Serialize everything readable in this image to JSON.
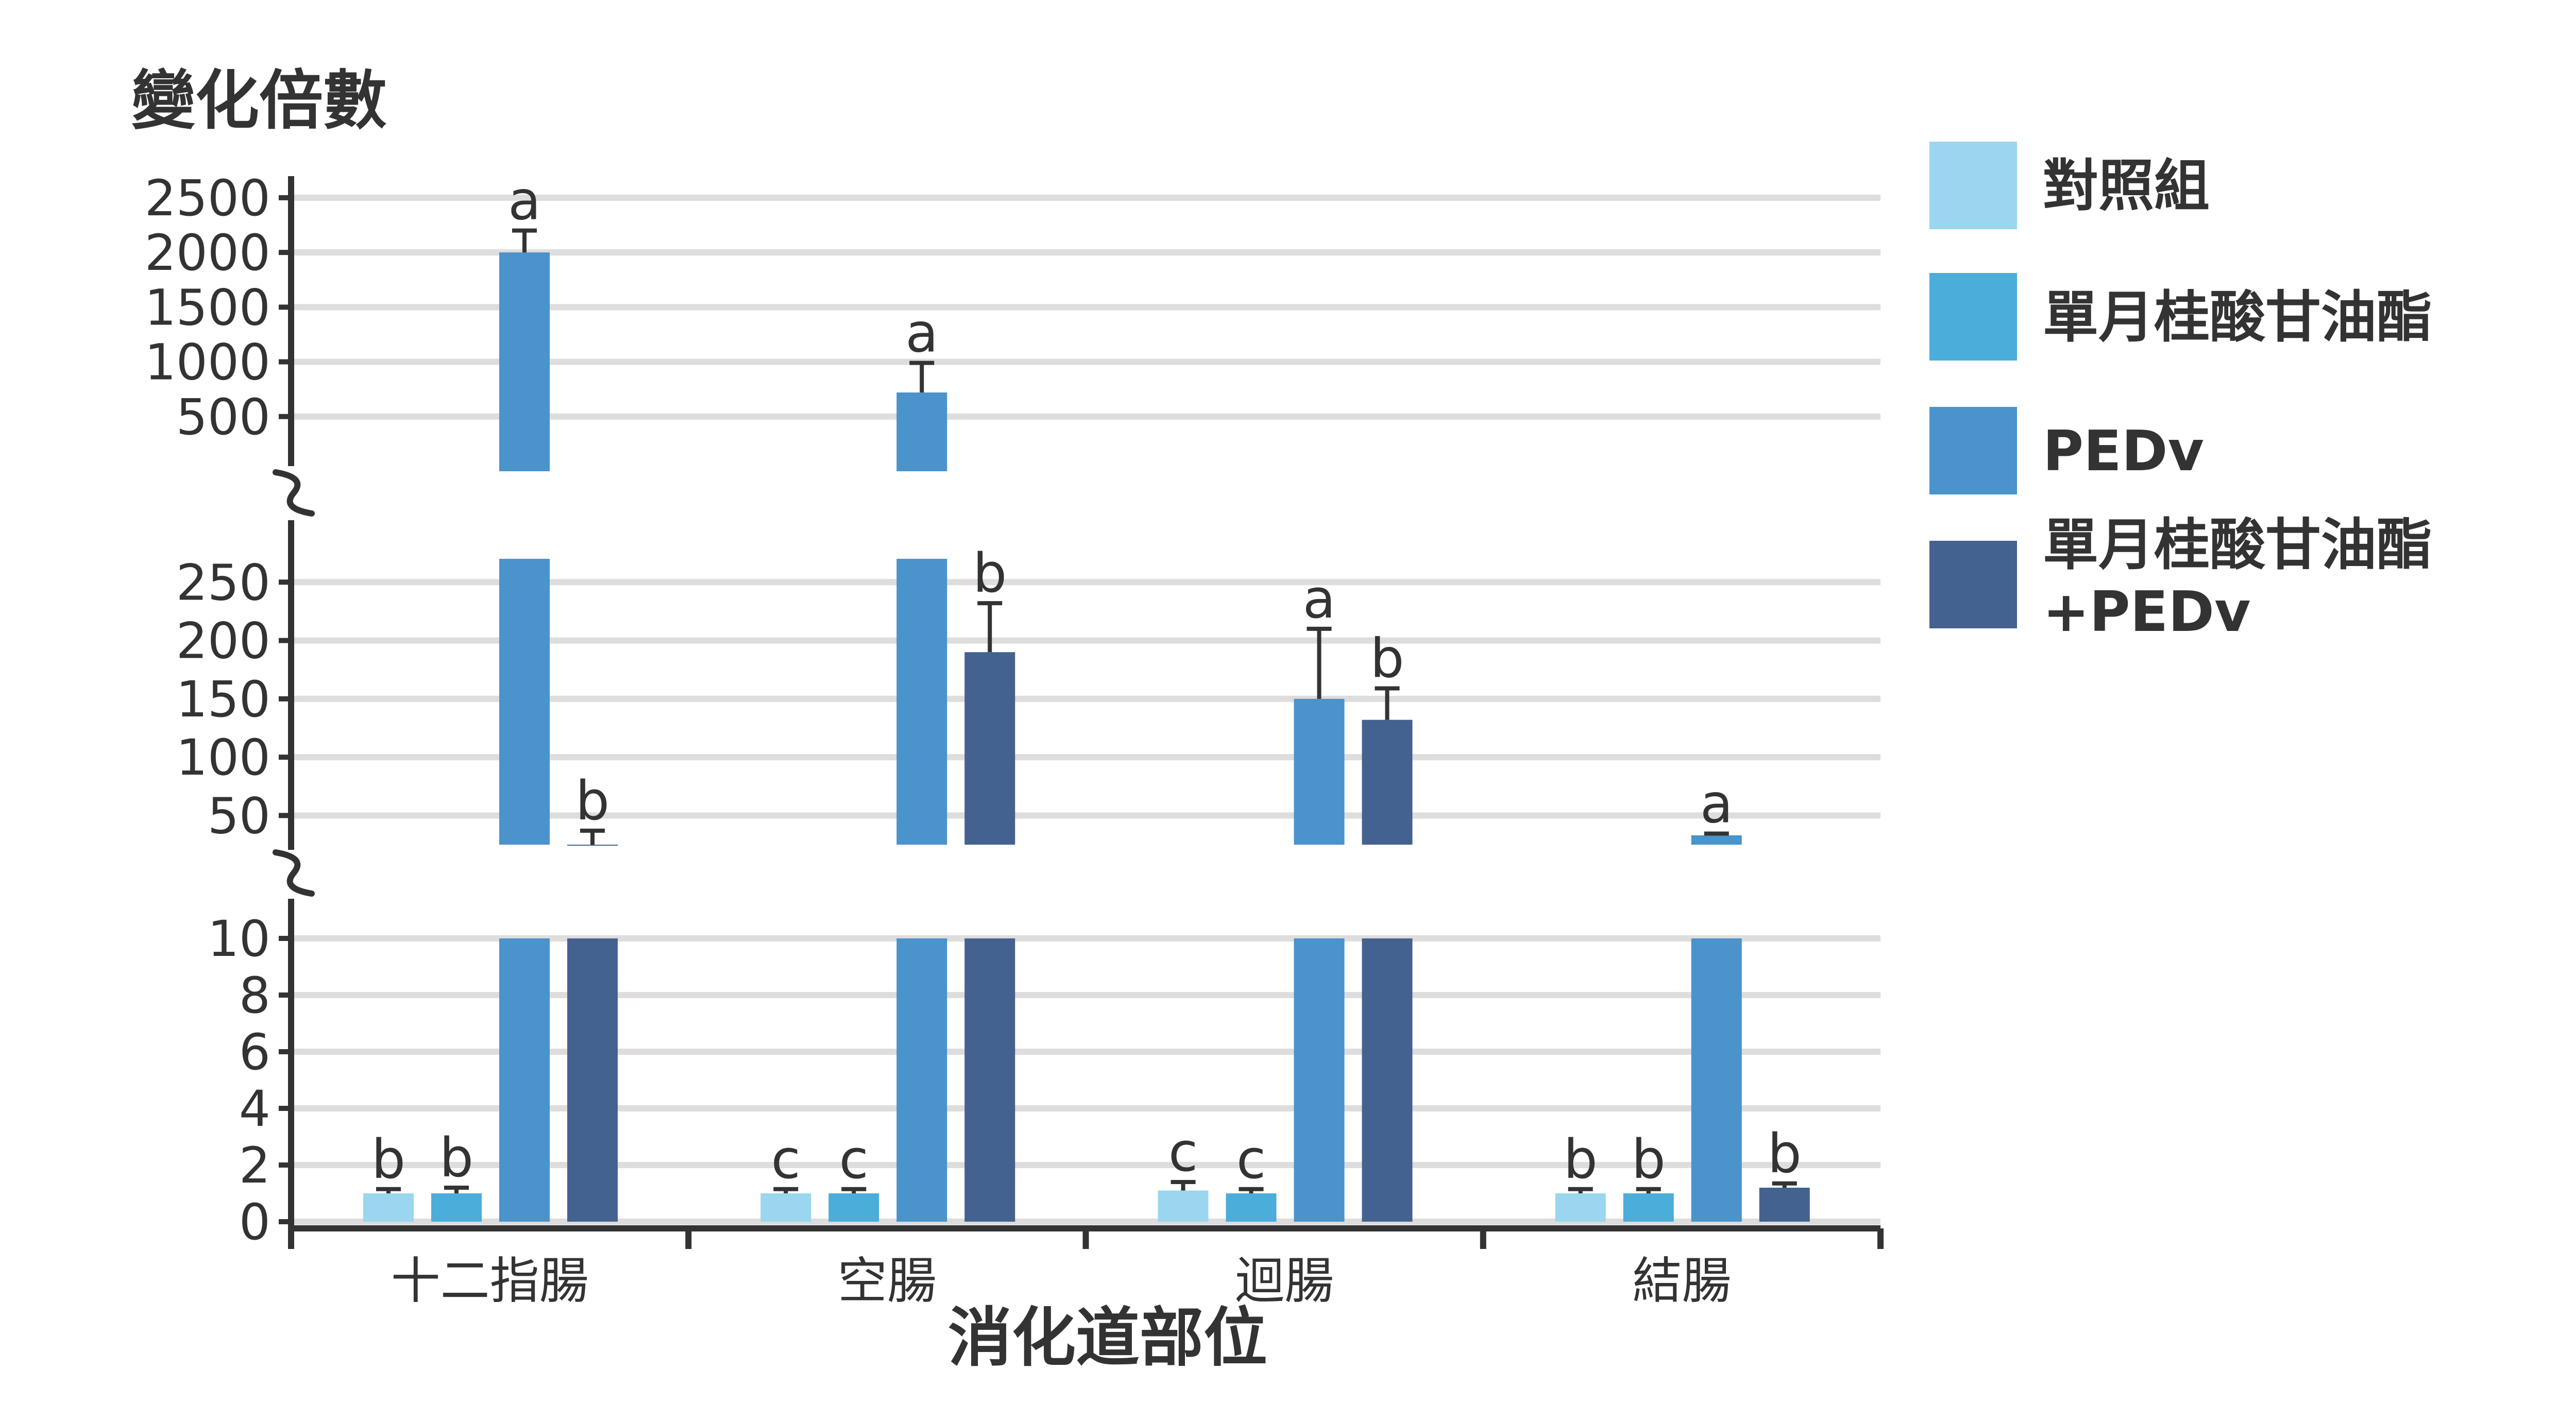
{
  "chart_data": {
    "type": "bar",
    "ylabel": "變化倍數",
    "xlabel": "消化道部位",
    "categories": [
      "十二指腸",
      "空腸",
      "迴腸",
      "結腸"
    ],
    "y_axis": {
      "broken": true,
      "segments": [
        {
          "range": [
            0,
            10
          ],
          "ticks": [
            "0",
            "2",
            "4",
            "6",
            "8",
            "10"
          ]
        },
        {
          "range": [
            25,
            270
          ],
          "ticks": [
            "50",
            "100",
            "150",
            "200",
            "250"
          ]
        },
        {
          "range": [
            0,
            2650
          ],
          "ticks": [
            "500",
            "1000",
            "1500",
            "2000",
            "2500"
          ]
        }
      ]
    },
    "series": [
      {
        "name": "對照組",
        "color": "#9ad6ef",
        "values": [
          1,
          1,
          1.1,
          1
        ],
        "errors": [
          0.15,
          0.15,
          0.3,
          0.15
        ],
        "sig": [
          "b",
          "c",
          "c",
          "b"
        ]
      },
      {
        "name": "單月桂酸甘油酯",
        "color": "#4badd9",
        "values": [
          1,
          1,
          1,
          1
        ],
        "errors": [
          0.2,
          0.15,
          0.15,
          0.15
        ],
        "sig": [
          "b",
          "c",
          "c",
          "b"
        ]
      },
      {
        "name": "PEDv",
        "color": "#4a93cb",
        "values": [
          2000,
          720,
          150,
          33
        ],
        "errors": [
          200,
          270,
          60,
          1.5
        ],
        "sig": [
          "a",
          "a",
          "a",
          "a"
        ]
      },
      {
        "name": "單月桂酸甘油酯\n+PEDv",
        "color": "#44628f",
        "values": [
          25,
          190,
          132,
          1.2
        ],
        "errors": [
          12,
          42,
          27,
          0.15
        ],
        "sig": [
          "b",
          "b",
          "b",
          "b"
        ]
      }
    ],
    "grid": true,
    "legend_position": "right"
  }
}
